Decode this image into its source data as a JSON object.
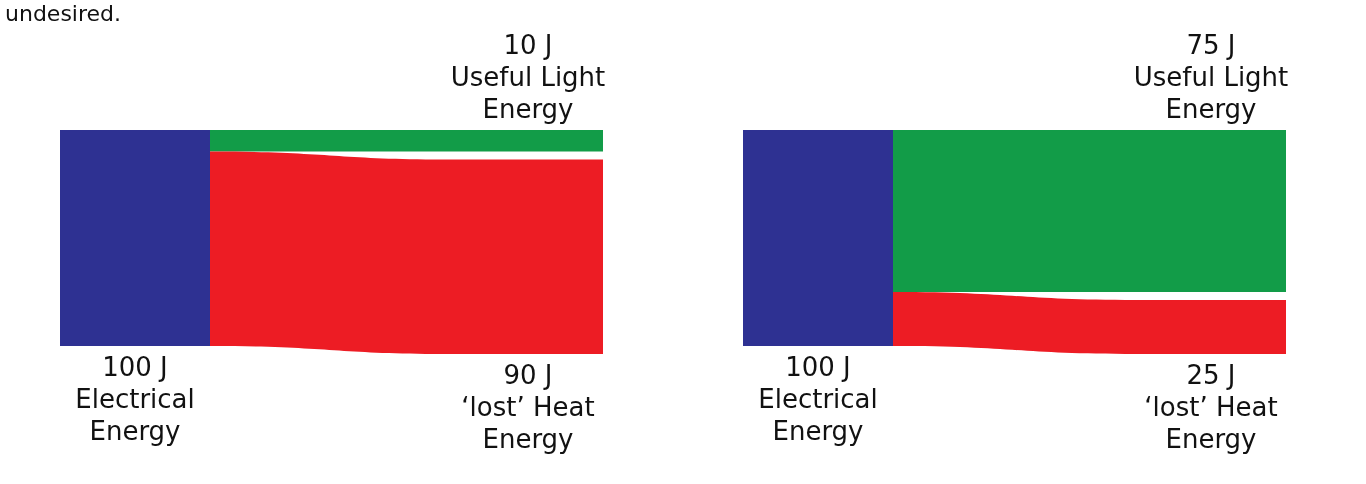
{
  "chart_data": [
    {
      "type": "other",
      "annotations": [
        "undesired."
      ],
      "categories": [
        "Electrical Energy",
        "Useful Light Energy",
        "‘lost’ Heat Energy"
      ],
      "values": [
        100,
        10,
        90
      ],
      "value_labels": [
        "100 J",
        "10 J",
        "90 J"
      ],
      "colors": [
        "#2e3192",
        "#129c48",
        "#ed1c24"
      ]
    },
    {
      "type": "other",
      "categories": [
        "Electrical Energy",
        "Useful Light Energy",
        "‘lost’ Heat Energy"
      ],
      "values": [
        100,
        75,
        25
      ],
      "value_labels": [
        "100 J",
        "75 J",
        "25 J"
      ],
      "colors": [
        "#2e3192",
        "#129c48",
        "#ed1c24"
      ]
    }
  ]
}
